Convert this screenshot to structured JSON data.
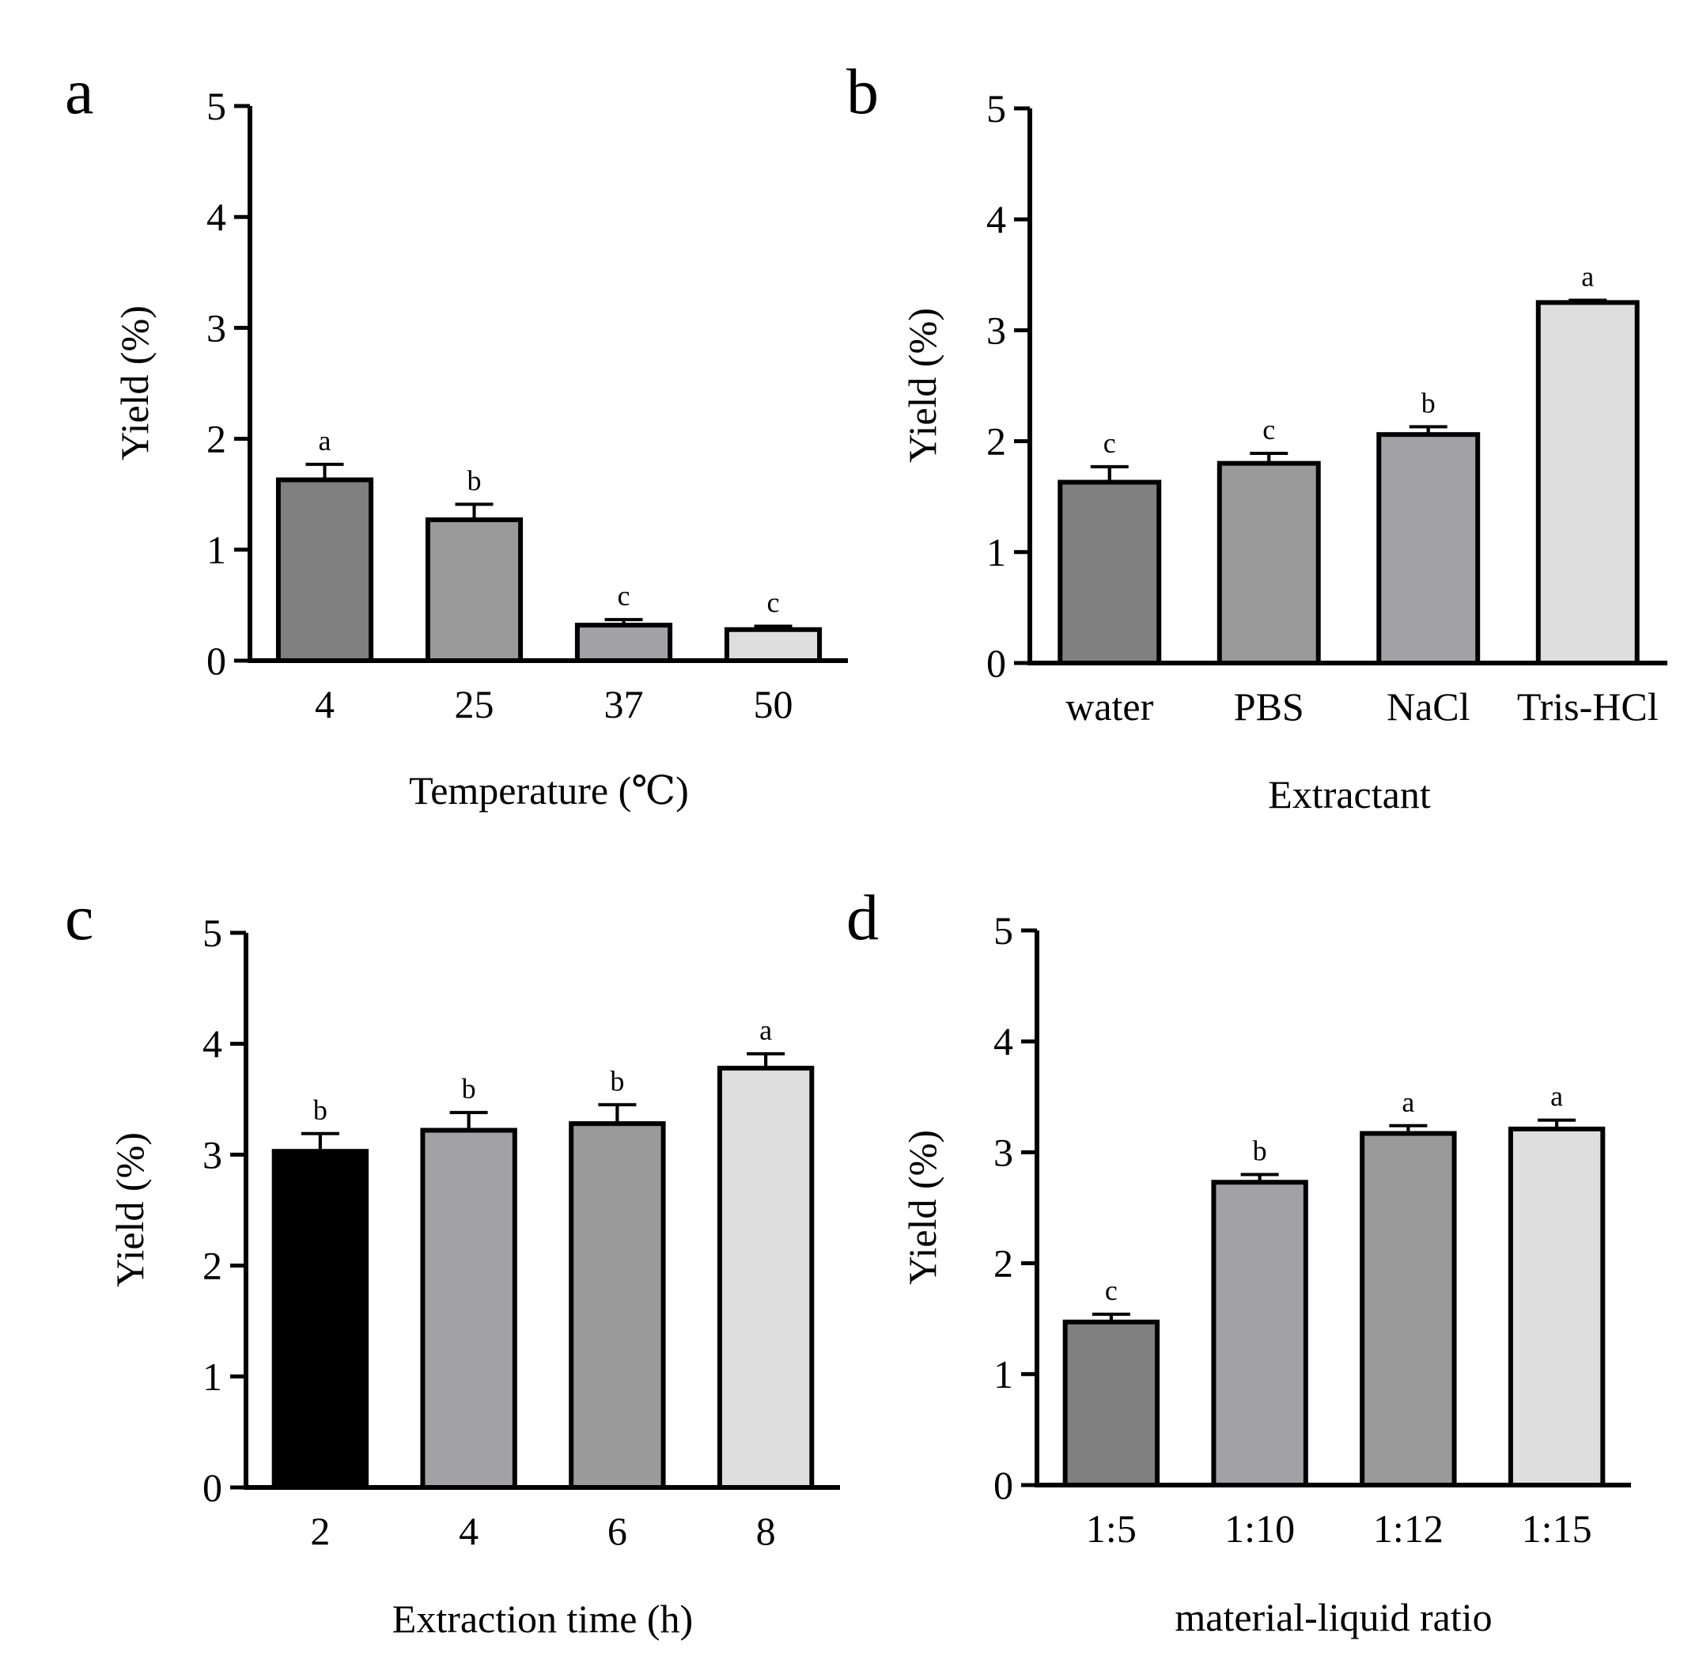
{
  "figure": {
    "panels": [
      "a",
      "b",
      "c",
      "d"
    ]
  },
  "chart_data": [
    {
      "panel": "a",
      "type": "bar",
      "categories": [
        "4",
        "25",
        "37",
        "50"
      ],
      "values": [
        1.63,
        1.27,
        0.32,
        0.28
      ],
      "errors": [
        0.14,
        0.14,
        0.05,
        0.03
      ],
      "significance": [
        "a",
        "b",
        "c",
        "c"
      ],
      "colors": [
        "#808080",
        "#9a9a9a",
        "#a2a2a6",
        "#dedede"
      ],
      "xlabel": "Temperature (℃)",
      "ylabel": "Yield (%)",
      "ylim": [
        0,
        5
      ],
      "yticks": [
        "0",
        "1",
        "2",
        "3",
        "4",
        "5"
      ]
    },
    {
      "panel": "b",
      "type": "bar",
      "categories": [
        "water",
        "PBS",
        "NaCl",
        "Tris-HCl"
      ],
      "values": [
        1.63,
        1.8,
        2.06,
        3.25
      ],
      "errors": [
        0.14,
        0.09,
        0.07,
        0.02
      ],
      "significance": [
        "c",
        "c",
        "b",
        "a"
      ],
      "colors": [
        "#808080",
        "#9a9a9a",
        "#a2a2a6",
        "#dedede"
      ],
      "xlabel": "Extractant",
      "ylabel": "Yield (%)",
      "ylim": [
        0,
        5
      ],
      "yticks": [
        "0",
        "1",
        "2",
        "3",
        "4",
        "5"
      ]
    },
    {
      "panel": "c",
      "type": "bar",
      "categories": [
        "2",
        "4",
        "6",
        "8"
      ],
      "values": [
        3.03,
        3.22,
        3.28,
        3.78
      ],
      "errors": [
        0.16,
        0.16,
        0.17,
        0.13
      ],
      "significance": [
        "b",
        "b",
        "b",
        "a"
      ],
      "colors": [
        "#000000",
        "#a2a2a6",
        "#9a9a9a",
        "#dedede"
      ],
      "xlabel": "Extraction time (h)",
      "ylabel": "Yield (%)",
      "ylim": [
        0,
        5
      ],
      "yticks": [
        "0",
        "1",
        "2",
        "3",
        "4",
        "5"
      ]
    },
    {
      "panel": "d",
      "type": "bar",
      "categories": [
        "1:5",
        "1:10",
        "1:12",
        "1:15"
      ],
      "values": [
        1.47,
        2.73,
        3.17,
        3.21
      ],
      "errors": [
        0.07,
        0.07,
        0.07,
        0.08
      ],
      "significance": [
        "c",
        "b",
        "a",
        "a"
      ],
      "colors": [
        "#808080",
        "#a2a2a6",
        "#9a9a9a",
        "#dedede"
      ],
      "xlabel": "material-liquid ratio",
      "ylabel": "Yield (%)",
      "ylim": [
        0,
        5
      ],
      "yticks": [
        "0",
        "1",
        "2",
        "3",
        "4",
        "5"
      ]
    }
  ]
}
